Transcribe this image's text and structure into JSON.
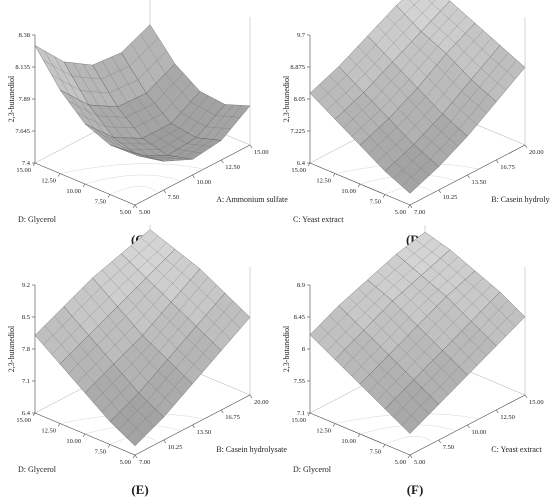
{
  "chart_data": [
    {
      "type": "surface",
      "label": "(C)",
      "zlabel": "2,3-butanediol",
      "xlabel": "A: Ammonium sulfate",
      "ylabel": "D: Glycerol",
      "x": [
        5,
        7.5,
        10,
        12.5,
        15
      ],
      "y": [
        5,
        7.5,
        10,
        12.5,
        15
      ],
      "z": [
        [
          7.8,
          7.62,
          7.52,
          7.55,
          7.7
        ],
        [
          7.78,
          7.58,
          7.47,
          7.49,
          7.63
        ],
        [
          7.86,
          7.64,
          7.52,
          7.52,
          7.65
        ],
        [
          8.04,
          7.81,
          7.68,
          7.67,
          7.78
        ],
        [
          8.3,
          8.06,
          7.92,
          7.9,
          8.0
        ]
      ],
      "xlim": [
        5,
        15
      ],
      "ylim": [
        5,
        15
      ],
      "zlim": [
        7.4,
        8.38
      ],
      "xticks": [
        {
          "value": 5,
          "label": "5.00"
        },
        {
          "value": 7.5,
          "label": "7.50"
        },
        {
          "value": 10,
          "label": "10.00"
        },
        {
          "value": 12.5,
          "label": "12.50"
        },
        {
          "value": 15,
          "label": "15.00"
        }
      ],
      "yticks": [
        {
          "value": 5,
          "label": "5.00"
        },
        {
          "value": 7.5,
          "label": "7.50"
        },
        {
          "value": 10,
          "label": "10.00"
        },
        {
          "value": 12.5,
          "label": "12.50"
        },
        {
          "value": 15,
          "label": "15.00"
        }
      ],
      "zticks": [
        7.4,
        7.645,
        7.89,
        8.135,
        8.38
      ]
    },
    {
      "type": "surface",
      "label": "(D)",
      "zlabel": "2,3-butanediol",
      "xlabel": "B: Casein hydrolysate",
      "ylabel": "C: Yeast extract",
      "x": [
        7,
        10.25,
        13.5,
        16.75,
        20
      ],
      "y": [
        5,
        7.5,
        10,
        12.5,
        15
      ],
      "z": [
        [
          6.7,
          7.0,
          7.4,
          7.9,
          8.4
        ],
        [
          7.0,
          7.3,
          7.7,
          8.2,
          8.7
        ],
        [
          7.4,
          7.7,
          8.1,
          8.6,
          9.0
        ],
        [
          7.8,
          8.1,
          8.5,
          8.9,
          9.3
        ],
        [
          8.2,
          8.5,
          8.9,
          9.3,
          9.6
        ]
      ],
      "xlim": [
        7,
        20
      ],
      "ylim": [
        5,
        15
      ],
      "zlim": [
        6.4,
        9.7
      ],
      "xticks": [
        {
          "value": 7,
          "label": "7.00"
        },
        {
          "value": 10.25,
          "label": "10.25"
        },
        {
          "value": 13.5,
          "label": "13.50"
        },
        {
          "value": 16.75,
          "label": "16.75"
        },
        {
          "value": 20,
          "label": "20.00"
        }
      ],
      "yticks": [
        {
          "value": 5,
          "label": "5.00"
        },
        {
          "value": 7.5,
          "label": "7.50"
        },
        {
          "value": 10,
          "label": "10.00"
        },
        {
          "value": 12.5,
          "label": "12.50"
        },
        {
          "value": 15,
          "label": "15.00"
        }
      ],
      "zticks": [
        6.4,
        7.225,
        8.05,
        8.875,
        9.7
      ]
    },
    {
      "type": "surface",
      "label": "(E)",
      "zlabel": "2,3-butanediol",
      "xlabel": "B: Casein hydrolysate",
      "ylabel": "D: Glycerol",
      "x": [
        7,
        10.25,
        13.5,
        16.75,
        20
      ],
      "y": [
        5,
        7.5,
        10,
        12.5,
        15
      ],
      "z": [
        [
          6.6,
          6.9,
          7.3,
          7.7,
          8.1
        ],
        [
          6.9,
          7.2,
          7.6,
          8.0,
          8.4
        ],
        [
          7.3,
          7.6,
          7.9,
          8.3,
          8.7
        ],
        [
          7.7,
          8.0,
          8.3,
          8.6,
          8.9
        ],
        [
          8.1,
          8.4,
          8.7,
          8.9,
          9.1
        ]
      ],
      "xlim": [
        7,
        20
      ],
      "ylim": [
        5,
        15
      ],
      "zlim": [
        6.4,
        9.2
      ],
      "xticks": [
        {
          "value": 7,
          "label": "7.00"
        },
        {
          "value": 10.25,
          "label": "10.25"
        },
        {
          "value": 13.5,
          "label": "13.50"
        },
        {
          "value": 16.75,
          "label": "16.75"
        },
        {
          "value": 20,
          "label": "20.00"
        }
      ],
      "yticks": [
        {
          "value": 5,
          "label": "5.00"
        },
        {
          "value": 7.5,
          "label": "7.50"
        },
        {
          "value": 10,
          "label": "10.00"
        },
        {
          "value": 12.5,
          "label": "12.50"
        },
        {
          "value": 15,
          "label": "15.00"
        }
      ],
      "zticks": [
        6.4,
        7.1,
        7.8,
        8.5,
        9.2
      ]
    },
    {
      "type": "surface",
      "label": "(F)",
      "zlabel": "2,3-butanediol",
      "xlabel": "C: Yeast extract",
      "ylabel": "D: Glycerol",
      "x": [
        5,
        7.5,
        10,
        12.5,
        15
      ],
      "y": [
        5,
        7.5,
        10,
        12.5,
        15
      ],
      "z": [
        [
          7.4,
          7.6,
          7.8,
          8.0,
          8.2
        ],
        [
          7.6,
          7.8,
          8.0,
          8.2,
          8.4
        ],
        [
          7.8,
          8.0,
          8.2,
          8.4,
          8.55
        ],
        [
          8.0,
          8.2,
          8.4,
          8.55,
          8.7
        ],
        [
          8.2,
          8.4,
          8.55,
          8.7,
          8.8
        ]
      ],
      "xlim": [
        5,
        15
      ],
      "ylim": [
        5,
        15
      ],
      "zlim": [
        7.1,
        8.9
      ],
      "xticks": [
        {
          "value": 5,
          "label": "5.00"
        },
        {
          "value": 7.5,
          "label": "7.50"
        },
        {
          "value": 10,
          "label": "10.00"
        },
        {
          "value": 12.5,
          "label": "12.50"
        },
        {
          "value": 15,
          "label": "15.00"
        }
      ],
      "yticks": [
        {
          "value": 5,
          "label": "5.00"
        },
        {
          "value": 7.5,
          "label": "7.50"
        },
        {
          "value": 10,
          "label": "10.00"
        },
        {
          "value": 12.5,
          "label": "12.50"
        },
        {
          "value": 15,
          "label": "15.00"
        }
      ],
      "zticks": [
        7.1,
        7.55,
        8,
        8.45,
        8.9
      ]
    }
  ]
}
